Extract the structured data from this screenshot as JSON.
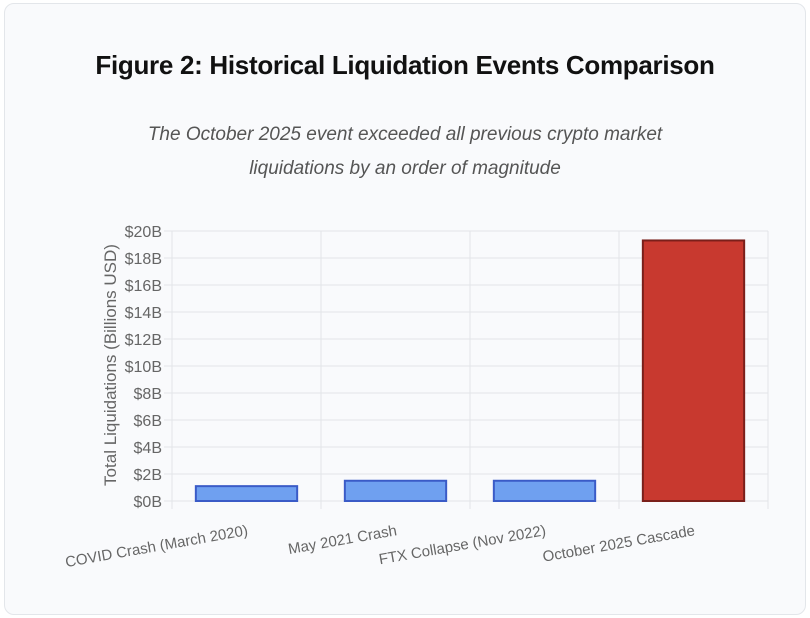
{
  "chart_data": {
    "type": "bar",
    "title": "Figure 2: Historical Liquidation Events Comparison",
    "subtitle": "The October 2025 event exceeded all previous crypto market liquidations by an order of magnitude",
    "xlabel": "",
    "ylabel": "Total Liquidations (Billions USD)",
    "ylim": [
      0,
      20
    ],
    "yticks": [
      "$0B",
      "$2B",
      "$4B",
      "$6B",
      "$8B",
      "$10B",
      "$12B",
      "$14B",
      "$16B",
      "$18B",
      "$20B"
    ],
    "categories": [
      "COVID Crash (March 2020)",
      "May 2021 Crash",
      "FTX Collapse (Nov 2022)",
      "October 2025 Cascade"
    ],
    "values": [
      1.1,
      1.5,
      1.5,
      19.3
    ],
    "colors": [
      "#6fa0f0",
      "#6fa0f0",
      "#6fa0f0",
      "#c8392f"
    ],
    "border_colors": [
      "#3a5bc7",
      "#3a5bc7",
      "#3a5bc7",
      "#7a1f1a"
    ],
    "grid": true,
    "legend": "none"
  }
}
